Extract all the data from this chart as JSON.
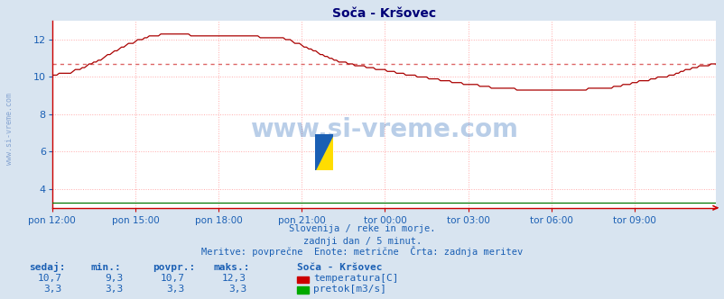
{
  "title": "Soča - Kršovec",
  "bg_color": "#d8e4f0",
  "plot_bg_color": "#ffffff",
  "grid_color": "#ffaaaa",
  "x_labels": [
    "pon 12:00",
    "pon 15:00",
    "pon 18:00",
    "pon 21:00",
    "tor 00:00",
    "tor 03:00",
    "tor 06:00",
    "tor 09:00"
  ],
  "x_ticks": [
    0,
    36,
    72,
    108,
    144,
    180,
    216,
    252
  ],
  "total_points": 288,
  "ylim": [
    3.0,
    13.0
  ],
  "yticks": [
    4,
    6,
    8,
    10,
    12
  ],
  "line_color": "#aa0000",
  "line_color2": "#007700",
  "avg_line_color": "#dd6666",
  "avg_value": 10.7,
  "watermark": "www.si-vreme.com",
  "watermark_color": "#1a5fb4",
  "watermark_alpha": 0.3,
  "left_text": "www.si-vreme.com",
  "left_text_color": "#7799cc",
  "subtitle1": "Slovenija / reke in morje.",
  "subtitle2": "zadnji dan / 5 minut.",
  "subtitle3": "Meritve: povprečne  Enote: metrične  Črta: zadnja meritev",
  "subtitle_color": "#1a5fb4",
  "table_color": "#1a5fb4",
  "sedaj_label": "sedaj:",
  "min_label": "min.:",
  "povpr_label": "povpr.:",
  "maks_label": "maks.:",
  "station_label": "Soča - Kršovec",
  "temp_label": "temperatura[C]",
  "flow_label": "pretok[m3/s]",
  "sedaj1": "10,7",
  "min1": "9,3",
  "povpr1": "10,7",
  "maks1": "12,3",
  "sedaj2": "3,3",
  "min2": "3,3",
  "povpr2": "3,3",
  "maks2": "3,3",
  "temp_rect_color": "#cc0000",
  "flow_rect_color": "#00aa00",
  "axis_color": "#cc0000",
  "tick_color": "#1a5fb4",
  "title_color": "#000077"
}
